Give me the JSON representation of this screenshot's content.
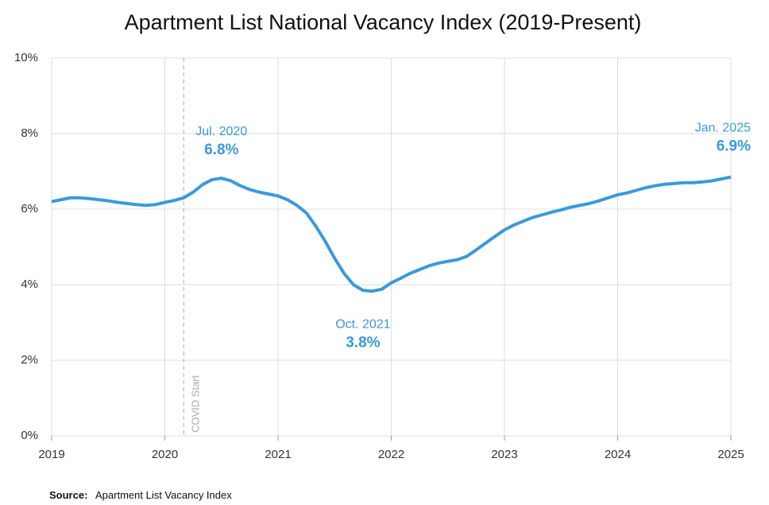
{
  "chart_data": {
    "type": "line",
    "title": "Apartment List National Vacancy Index (2019-Present)",
    "x": [
      2019,
      2019.0833,
      2019.1667,
      2019.25,
      2019.3333,
      2019.4167,
      2019.5,
      2019.5833,
      2019.6667,
      2019.75,
      2019.8333,
      2019.9167,
      2020,
      2020.0833,
      2020.1667,
      2020.25,
      2020.3333,
      2020.4167,
      2020.5,
      2020.5833,
      2020.6667,
      2020.75,
      2020.8333,
      2020.9167,
      2021,
      2021.0833,
      2021.1667,
      2021.25,
      2021.3333,
      2021.4167,
      2021.5,
      2021.5833,
      2021.6667,
      2021.75,
      2021.8333,
      2021.9167,
      2022,
      2022.0833,
      2022.1667,
      2022.25,
      2022.3333,
      2022.4167,
      2022.5,
      2022.5833,
      2022.6667,
      2022.75,
      2022.8333,
      2022.9167,
      2023,
      2023.0833,
      2023.1667,
      2023.25,
      2023.3333,
      2023.4167,
      2023.5,
      2023.5833,
      2023.6667,
      2023.75,
      2023.8333,
      2023.9167,
      2024,
      2024.0833,
      2024.1667,
      2024.25,
      2024.3333,
      2024.4167,
      2024.5,
      2024.5833,
      2024.6667,
      2024.75,
      2024.8333,
      2024.9167,
      2025
    ],
    "series": [
      {
        "name": "National Vacancy Index",
        "color": "#3a9ad9",
        "values": [
          6.2,
          6.25,
          6.3,
          6.3,
          6.28,
          6.25,
          6.22,
          6.18,
          6.15,
          6.12,
          6.1,
          6.12,
          6.18,
          6.23,
          6.3,
          6.45,
          6.65,
          6.78,
          6.82,
          6.75,
          6.62,
          6.52,
          6.45,
          6.4,
          6.35,
          6.25,
          6.1,
          5.9,
          5.55,
          5.15,
          4.7,
          4.3,
          4.0,
          3.85,
          3.83,
          3.88,
          4.05,
          4.17,
          4.3,
          4.4,
          4.5,
          4.57,
          4.62,
          4.66,
          4.75,
          4.92,
          5.1,
          5.28,
          5.45,
          5.58,
          5.68,
          5.78,
          5.85,
          5.92,
          5.98,
          6.05,
          6.1,
          6.15,
          6.22,
          6.3,
          6.38,
          6.43,
          6.5,
          6.57,
          6.62,
          6.66,
          6.68,
          6.7,
          6.7,
          6.72,
          6.75,
          6.8,
          6.85
        ]
      }
    ],
    "xlim": [
      2019,
      2025
    ],
    "xticks": [
      2019,
      2020,
      2021,
      2022,
      2023,
      2024,
      2025
    ],
    "ylim": [
      0,
      10
    ],
    "yticks": [
      {
        "value": 0,
        "label": "0%"
      },
      {
        "value": 2,
        "label": "2%"
      },
      {
        "value": 4,
        "label": "4%"
      },
      {
        "value": 6,
        "label": "6%"
      },
      {
        "value": 8,
        "label": "8%"
      },
      {
        "value": 10,
        "label": "10%"
      }
    ],
    "grid": true,
    "annotations": [
      {
        "text": "Jul. 2020",
        "label": "6.8%",
        "x": 2020.5,
        "value": 6.8
      },
      {
        "text": "Oct. 2021",
        "label": "3.8%",
        "x": 2021.75,
        "value": 3.8
      },
      {
        "text": "Jan. 2025",
        "label": "6.9%",
        "x": 2025,
        "value": 6.9
      }
    ],
    "event": {
      "text": "COVID Start",
      "x": 2020.1667
    },
    "source_label": "Source:",
    "source": "Apartment List Vacancy Index"
  }
}
